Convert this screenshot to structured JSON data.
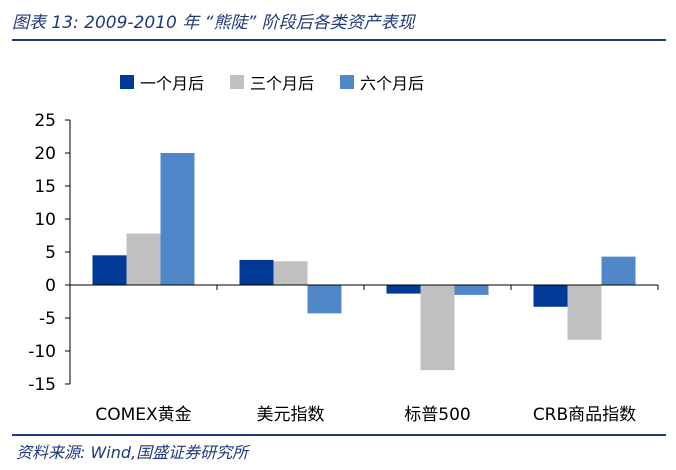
{
  "page": {
    "title": "图表 13:  2009-2010 年 “熊陡” 阶段后各类资产表现",
    "source": "资料来源:  Wind,国盛证券研究所"
  },
  "colors": {
    "s1": "#003a96",
    "s2": "#c0c0c0",
    "s3": "#5087c8",
    "axis": "#000000",
    "rule": "#1f3a7a"
  },
  "chart_data": {
    "type": "bar",
    "categories": [
      "COMEX黄金",
      "美元指数",
      "标普500",
      "CRB商品指数"
    ],
    "series": [
      {
        "name": "一个月后",
        "values": [
          4.5,
          3.8,
          -1.3,
          -3.3
        ]
      },
      {
        "name": "三个月后",
        "values": [
          7.8,
          3.6,
          -12.9,
          -8.3
        ]
      },
      {
        "name": "六个月后",
        "values": [
          20.0,
          -4.3,
          -1.5,
          4.3
        ]
      }
    ],
    "ylim": [
      -15,
      25
    ],
    "yticks": [
      -15,
      -10,
      -5,
      0,
      5,
      10,
      15,
      20,
      25
    ],
    "legend_position": "top"
  }
}
